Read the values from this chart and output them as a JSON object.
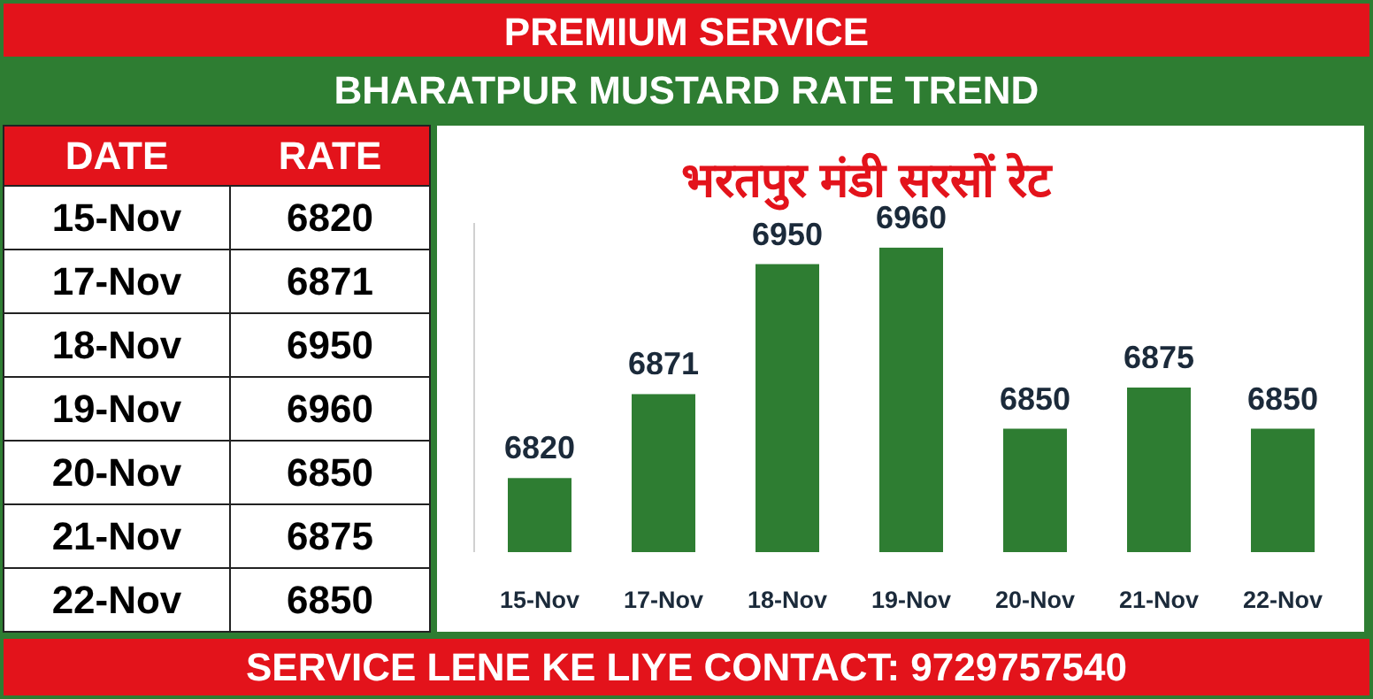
{
  "chart_data": [
    {
      "type": "other",
      "annotations": [
        "DATE",
        "RATE"
      ],
      "categories": [
        "15-Nov",
        "17-Nov",
        "18-Nov",
        "19-Nov",
        "20-Nov",
        "21-Nov",
        "22-Nov"
      ],
      "values": [
        6820,
        6871,
        6950,
        6960,
        6850,
        6875,
        6850
      ],
      "data_labels": true
    },
    {
      "type": "bar",
      "title": "भरतपुर मंडी सरसों रेट",
      "subtitle": "BHARATPUR MUSTARD RATE TREND",
      "categories": [
        "15-Nov",
        "17-Nov",
        "18-Nov",
        "19-Nov",
        "20-Nov",
        "21-Nov",
        "22-Nov"
      ],
      "values": [
        6820,
        6871,
        6950,
        6960,
        6850,
        6875,
        6850
      ],
      "color": "#2e7d32",
      "ylim": [
        6775,
        6975
      ],
      "tick_labels": "x",
      "data_labels": true,
      "annotations": [
        "PREMIUM SERVICE",
        "SERVICE LENE KE LIYE CONTACT: 9729757540"
      ]
    }
  ]
}
